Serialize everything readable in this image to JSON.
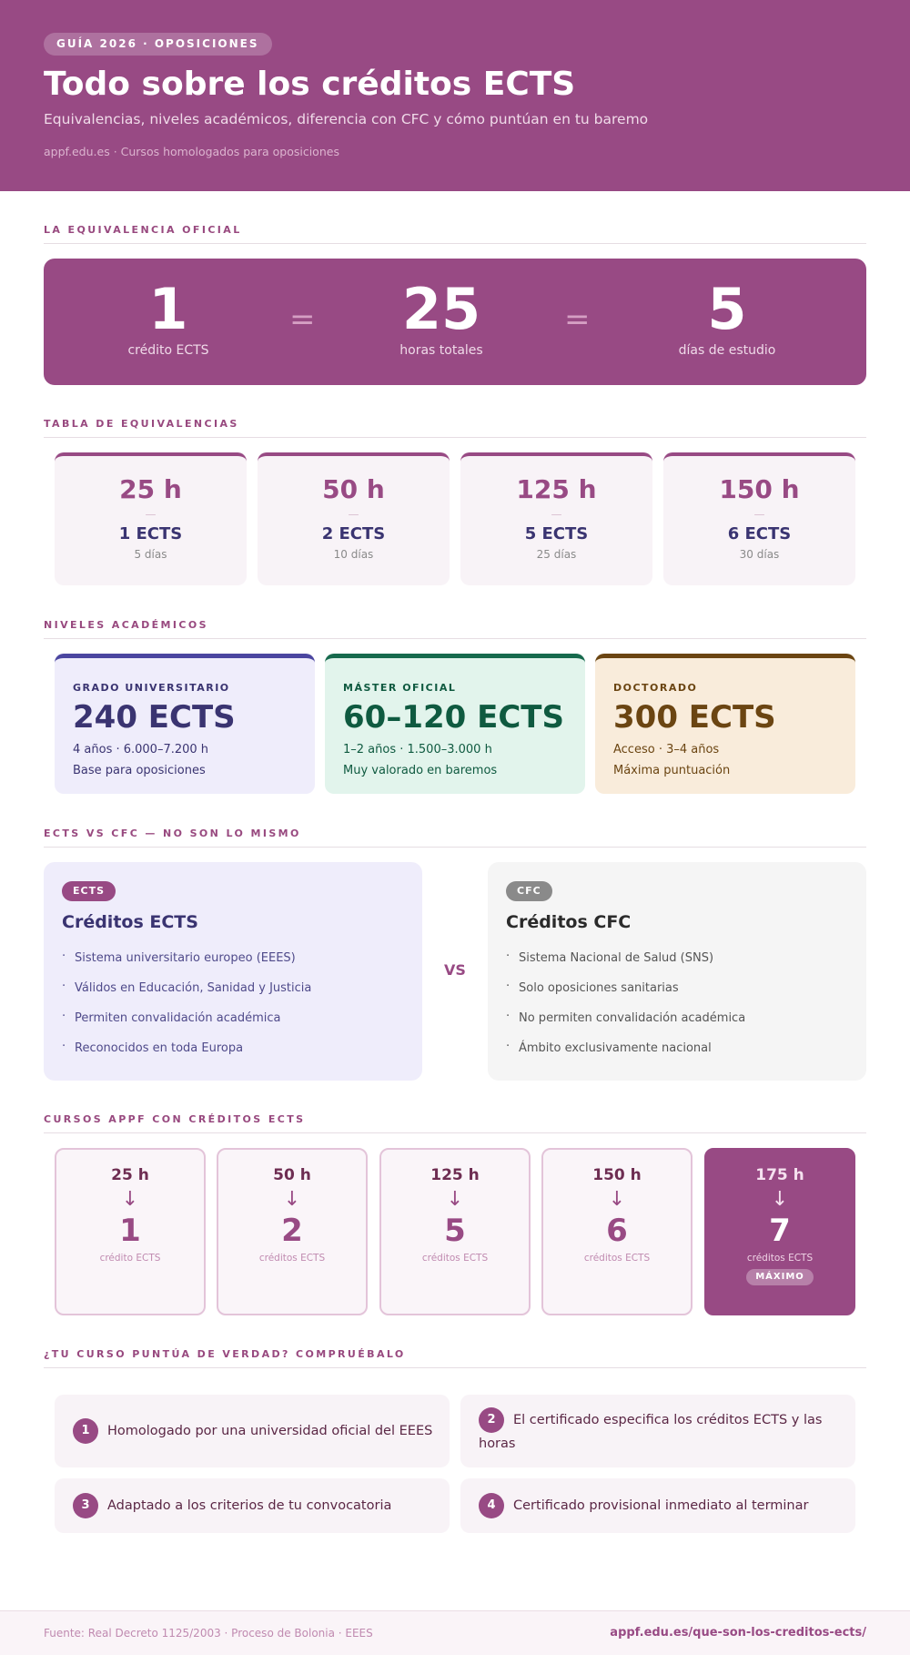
{
  "header": {
    "badge": "GUÍA 2026 · OPOSICIONES",
    "title": "Todo sobre los créditos ECTS",
    "subtitle": "Equivalencias, niveles académicos, diferencia con CFC y cómo puntúan en tu baremo",
    "url": "appf.edu.es · Cursos homologados para oposiciones"
  },
  "equivalence": {
    "heading": "LA EQUIVALENCIA OFICIAL",
    "sign": "=",
    "items": [
      {
        "value": "1",
        "label": "crédito ECTS"
      },
      {
        "value": "25",
        "label": "horas totales"
      },
      {
        "value": "5",
        "label": "días de estudio"
      }
    ]
  },
  "table": {
    "heading": "TABLA DE EQUIVALENCIAS",
    "dash": "—",
    "cards": [
      {
        "hours": "25 h",
        "ects": "1 ECTS",
        "days": "5 días"
      },
      {
        "hours": "50 h",
        "ects": "2 ECTS",
        "days": "10 días"
      },
      {
        "hours": "125 h",
        "ects": "5 ECTS",
        "days": "25 días"
      },
      {
        "hours": "150 h",
        "ects": "6 ECTS",
        "days": "30 días"
      }
    ]
  },
  "levels": {
    "heading": "NIVELES ACADÉMICOS",
    "cards": [
      {
        "tag": "GRADO UNIVERSITARIO",
        "value": "240 ECTS",
        "line1": "4 años · 6.000–7.200 h",
        "line2": "Base para oposiciones",
        "accent": "#4b46a0",
        "bg": "#efedfb",
        "text": "#3a3471"
      },
      {
        "tag": "MÁSTER OFICIAL",
        "value": "60–120 ECTS",
        "line1": "1–2 años · 1.500–3.000 h",
        "line2": "Muy valorado en baremos",
        "accent": "#176a4d",
        "bg": "#e2f4ec",
        "text": "#0f5a40"
      },
      {
        "tag": "DOCTORADO",
        "value": "300 ECTS",
        "line1": "Acceso · 3–4 años",
        "line2": "Máxima puntuación",
        "accent": "#6b4512",
        "bg": "#f9ecdb",
        "text": "#6b4512"
      }
    ]
  },
  "comparison": {
    "heading": "ECTS VS CFC — NO SON LO MISMO",
    "vs": "VS",
    "ects": {
      "badge": "ECTS",
      "title": "Créditos ECTS",
      "items": [
        "Sistema universitario europeo (EEES)",
        "Válidos en Educación, Sanidad y Justicia",
        "Permiten convalidación académica",
        "Reconocidos en toda Europa"
      ]
    },
    "cfc": {
      "badge": "CFC",
      "title": "Créditos CFC",
      "items": [
        "Sistema Nacional de Salud (SNS)",
        "Solo oposiciones sanitarias",
        "No permiten convalidación académica",
        "Ámbito exclusivamente nacional"
      ]
    }
  },
  "courses": {
    "heading": "CURSOS APPF CON CRÉDITOS ECTS",
    "arrow": "↓",
    "items": [
      {
        "hours": "25 h",
        "credits": "1",
        "label": "crédito ECTS"
      },
      {
        "hours": "50 h",
        "credits": "2",
        "label": "créditos ECTS"
      },
      {
        "hours": "125 h",
        "credits": "5",
        "label": "créditos ECTS"
      },
      {
        "hours": "150 h",
        "credits": "6",
        "label": "créditos ECTS"
      },
      {
        "hours": "175 h",
        "credits": "7",
        "label": "créditos ECTS",
        "badge": "MÁXIMO"
      }
    ]
  },
  "checks": {
    "heading": "¿TU CURSO PUNTÚA DE VERDAD? COMPRUÉBALO",
    "items": [
      {
        "num": "1",
        "text": "Homologado por una universidad oficial del EEES"
      },
      {
        "num": "2",
        "text": "El certificado especifica los créditos ECTS y las horas"
      },
      {
        "num": "3",
        "text": "Adaptado a los criterios de tu convocatoria"
      },
      {
        "num": "4",
        "text": "Certificado provisional inmediato al terminar"
      }
    ]
  },
  "footer": {
    "source": "Fuente: Real Decreto 1125/2003 · Proceso de Bolonia · EEES",
    "url": "appf.edu.es/que-son-los-creditos-ects/"
  }
}
